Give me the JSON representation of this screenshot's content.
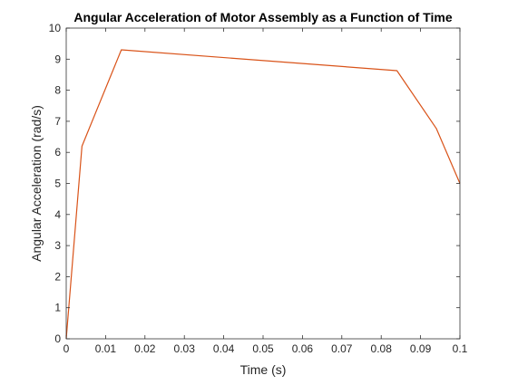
{
  "chart_data": {
    "type": "line",
    "title": "Angular Acceleration of Motor Assembly as a Function of Time",
    "xlabel": "Time (s)",
    "ylabel": "Angular Acceleration (rad/s)",
    "xlim": [
      0,
      0.1
    ],
    "ylim": [
      0,
      10
    ],
    "xticks": [
      0,
      0.01,
      0.02,
      0.03,
      0.04,
      0.05,
      0.06,
      0.07,
      0.08,
      0.09,
      0.1
    ],
    "xtick_labels": [
      "0",
      "0.01",
      "0.02",
      "0.03",
      "0.04",
      "0.05",
      "0.06",
      "0.07",
      "0.08",
      "0.09",
      "0.1"
    ],
    "yticks": [
      0,
      1,
      2,
      3,
      4,
      5,
      6,
      7,
      8,
      9,
      10
    ],
    "ytick_labels": [
      "0",
      "1",
      "2",
      "3",
      "4",
      "5",
      "6",
      "7",
      "8",
      "9",
      "10"
    ],
    "grid": false,
    "legend": "none",
    "series": [
      {
        "color": "#D95319",
        "x": [
          0,
          0.004,
          0.014,
          0.084,
          0.094,
          0.1
        ],
        "y": [
          0.0,
          6.2,
          9.3,
          8.63,
          6.77,
          5.0
        ]
      }
    ]
  }
}
